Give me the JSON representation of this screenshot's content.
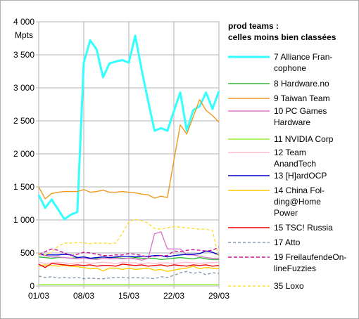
{
  "chart_data": {
    "type": "line",
    "title": "",
    "xlabel": "",
    "ylabel": "Mpts",
    "ylim": [
      0,
      4000
    ],
    "yticks": [
      "0",
      "500",
      "1 000",
      "1 500",
      "2 000",
      "2 500",
      "3 000",
      "3 500",
      "4 000"
    ],
    "yticks_values": [
      0,
      500,
      1000,
      1500,
      2000,
      2500,
      3000,
      3500,
      4000
    ],
    "x_start_day": 1,
    "x_end_day": 29,
    "xticks": [
      "01/03",
      "08/03",
      "15/03",
      "22/03",
      "29/03"
    ],
    "xticks_days": [
      1,
      8,
      15,
      22,
      29
    ],
    "grid": true,
    "legend": {
      "title_lines": [
        "prod teams :",
        "celles moins bien classées"
      ],
      "placement": "right"
    },
    "series": [
      {
        "name": "7 Alliance Francophone",
        "label_lines": [
          "7 Alliance Fran-",
          "cophone"
        ],
        "color": "#33ffff",
        "width": 3,
        "dash": "",
        "values": [
          1380,
          1180,
          1310,
          1160,
          1010,
          1080,
          1120,
          3380,
          3720,
          3580,
          3160,
          3370,
          3400,
          3420,
          3380,
          3790,
          3270,
          2800,
          2350,
          2390,
          2350,
          2650,
          2930,
          2350,
          2660,
          2720,
          2930,
          2680,
          2950
        ]
      },
      {
        "name": "8 Hardware.no",
        "label_lines": [
          "8 Hardware.no"
        ],
        "color": "#33bb33",
        "width": 1.4,
        "dash": "",
        "values": [
          440,
          430,
          420,
          430,
          430,
          420,
          430,
          440,
          420,
          420,
          440,
          430,
          430,
          420,
          420,
          430,
          420,
          420,
          420,
          400,
          410,
          420,
          430,
          420,
          410,
          430,
          410,
          400,
          400
        ]
      },
      {
        "name": "9 Taiwan Team",
        "label_lines": [
          "9 Taiwan Team"
        ],
        "color": "#ee9922",
        "width": 1.4,
        "dash": "",
        "values": [
          1500,
          1320,
          1400,
          1420,
          1430,
          1430,
          1430,
          1460,
          1420,
          1430,
          1450,
          1420,
          1420,
          1430,
          1420,
          1410,
          1390,
          1380,
          1330,
          1360,
          1340,
          1900,
          2440,
          2300,
          2560,
          2820,
          2660,
          2580,
          2480
        ]
      },
      {
        "name": "10 PC Games Hardware",
        "label_lines": [
          "10 PC Games",
          "Hardware"
        ],
        "color": "#dd77cc",
        "width": 1.4,
        "dash": "",
        "values": [
          480,
          460,
          440,
          440,
          430,
          420,
          410,
          420,
          410,
          400,
          420,
          410,
          420,
          410,
          420,
          410,
          390,
          420,
          790,
          820,
          560,
          560,
          560,
          470,
          470,
          450,
          430,
          420,
          420
        ]
      },
      {
        "name": "11 NVIDIA Corp",
        "label_lines": [
          "11 NVIDIA Corp"
        ],
        "color": "#99ee33",
        "width": 1.4,
        "dash": "",
        "values": [
          20,
          20,
          20,
          20,
          20,
          20,
          20,
          20,
          20,
          20,
          20,
          20,
          20,
          20,
          20,
          20,
          20,
          20,
          20,
          20,
          20,
          20,
          20,
          20,
          20,
          20,
          20,
          20,
          20
        ]
      },
      {
        "name": "12 Team AnandTech",
        "label_lines": [
          "12 Team",
          "AnandTech"
        ],
        "color": "#ffbbcc",
        "width": 1.4,
        "dash": "",
        "values": [
          360,
          340,
          350,
          360,
          350,
          340,
          350,
          360,
          340,
          350,
          360,
          350,
          340,
          360,
          350,
          350,
          340,
          350,
          340,
          350,
          350,
          340,
          350,
          360,
          350,
          340,
          350,
          350,
          360
        ]
      },
      {
        "name": "13 [H]ardOCP",
        "label_lines": [
          "13 [H]ardOCP"
        ],
        "color": "#0000cc",
        "width": 1.4,
        "dash": "",
        "values": [
          490,
          470,
          470,
          470,
          480,
          470,
          430,
          440,
          420,
          430,
          440,
          430,
          440,
          450,
          450,
          440,
          450,
          450,
          460,
          460,
          440,
          460,
          470,
          480,
          480,
          490,
          530,
          510,
          470
        ]
      },
      {
        "name": "14 China Folding@Home Power",
        "label_lines": [
          "14 China Fol-",
          "ding@Home",
          "Power"
        ],
        "color": "#ffcc00",
        "width": 1.4,
        "dash": "",
        "values": [
          300,
          320,
          310,
          300,
          310,
          300,
          290,
          280,
          260,
          270,
          230,
          270,
          270,
          250,
          270,
          250,
          260,
          270,
          240,
          250,
          220,
          240,
          260,
          270,
          300,
          260,
          280,
          270,
          260
        ]
      },
      {
        "name": "15 TSC! Russia",
        "label_lines": [
          "15 TSC! Russia"
        ],
        "color": "#ee0000",
        "width": 1.4,
        "dash": "",
        "values": [
          330,
          280,
          340,
          330,
          320,
          310,
          320,
          310,
          320,
          300,
          310,
          310,
          300,
          330,
          320,
          310,
          320,
          300,
          310,
          320,
          300,
          320,
          310,
          300,
          320,
          310,
          320,
          300,
          310
        ]
      },
      {
        "name": "17 Atto",
        "label_lines": [
          "17 Atto"
        ],
        "color": "#8899aa",
        "width": 1.4,
        "dash": "4,3",
        "values": [
          150,
          130,
          140,
          120,
          130,
          120,
          130,
          110,
          120,
          110,
          110,
          120,
          130,
          130,
          120,
          130,
          120,
          120,
          110,
          140,
          130,
          160,
          200,
          220,
          190,
          210,
          170,
          200,
          190
        ]
      },
      {
        "name": "19 FreilaufendeOnlineFuzzies",
        "label_lines": [
          "19 FreilaufendeOn-",
          "lineFuzzies"
        ],
        "color": "#cc1199",
        "width": 1.4,
        "dash": "5,3",
        "values": [
          480,
          520,
          560,
          540,
          500,
          460,
          480,
          510,
          500,
          480,
          460,
          460,
          470,
          470,
          490,
          480,
          460,
          440,
          450,
          460,
          460,
          530,
          520,
          540,
          550,
          540,
          530,
          540,
          590
        ]
      },
      {
        "name": "35 Loxo",
        "label_lines": [
          "35 Loxo"
        ],
        "color": "#ffdd33",
        "width": 1.4,
        "dash": "4,3",
        "values": [
          490,
          470,
          510,
          600,
          650,
          650,
          660,
          650,
          640,
          650,
          650,
          640,
          650,
          800,
          970,
          1010,
          990,
          950,
          870,
          860,
          880,
          900,
          890,
          880,
          870,
          860,
          860,
          840,
          420
        ]
      }
    ]
  }
}
